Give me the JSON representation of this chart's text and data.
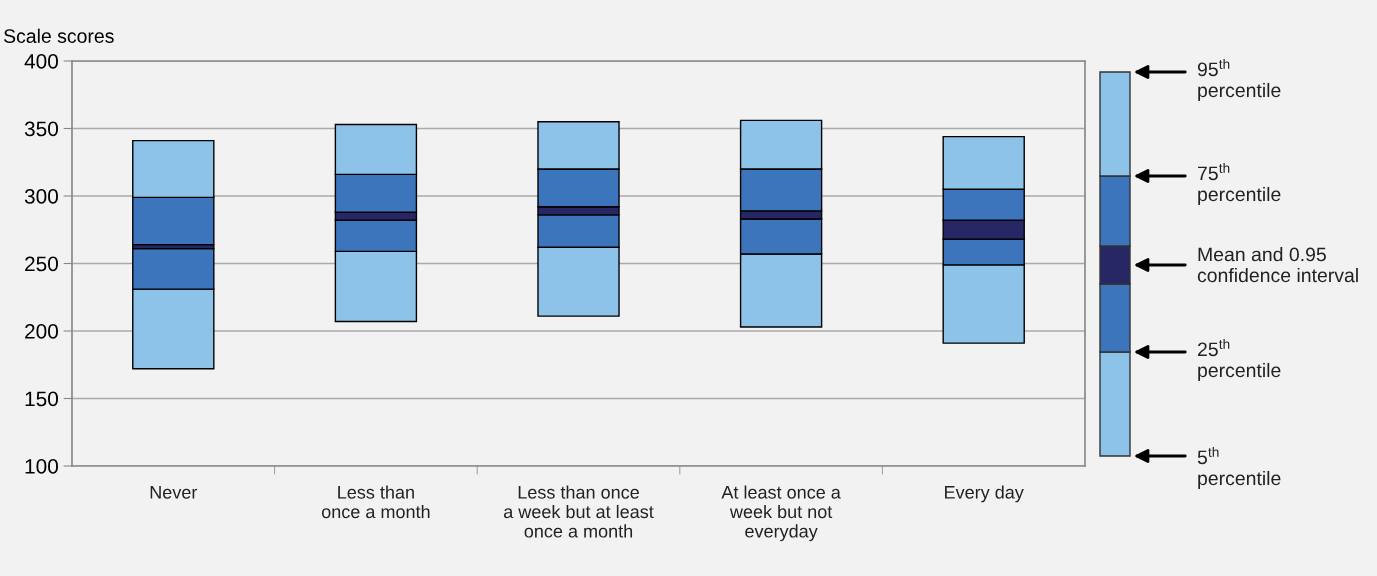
{
  "chart_data": {
    "type": "bar",
    "ylabel": "Scale scores",
    "categories": [
      "Never",
      "Less than\nonce a month",
      "Less than once\na week but at least\nonce a month",
      "At least once a\nweek but not\neveryday",
      "Every day"
    ],
    "series": [
      {
        "color": "#8dc3e8",
        "base": [
          172,
          207,
          211,
          203,
          191
        ],
        "values": [
          59,
          52,
          51,
          54,
          58
        ]
      },
      {
        "color": "#3c75bc",
        "base": [
          231,
          259,
          262,
          257,
          249
        ],
        "values": [
          30,
          23,
          24,
          26,
          19
        ]
      },
      {
        "color": "#272766",
        "base": [
          261,
          282,
          286,
          283,
          268
        ],
        "values": [
          3,
          6,
          6,
          6,
          14
        ]
      },
      {
        "color": "#3c75bc",
        "base": [
          264,
          288,
          292,
          289,
          282
        ],
        "values": [
          35,
          28,
          28,
          31,
          23
        ]
      },
      {
        "color": "#8dc3e8",
        "base": [
          299,
          316,
          320,
          320,
          305
        ],
        "values": [
          42,
          37,
          35,
          36,
          39
        ]
      }
    ],
    "ylim": [
      100,
      400
    ],
    "yticks": [
      100,
      150,
      200,
      250,
      300,
      350,
      400
    ],
    "grid": "y",
    "annotations": [
      "95$^{th}$\npercentile",
      "75$^{th}$\npercentile",
      "Mean and 0.95\nconfidence interval",
      "25$^{th}$\npercentile",
      "5$^{th}$\npercentile"
    ]
  }
}
